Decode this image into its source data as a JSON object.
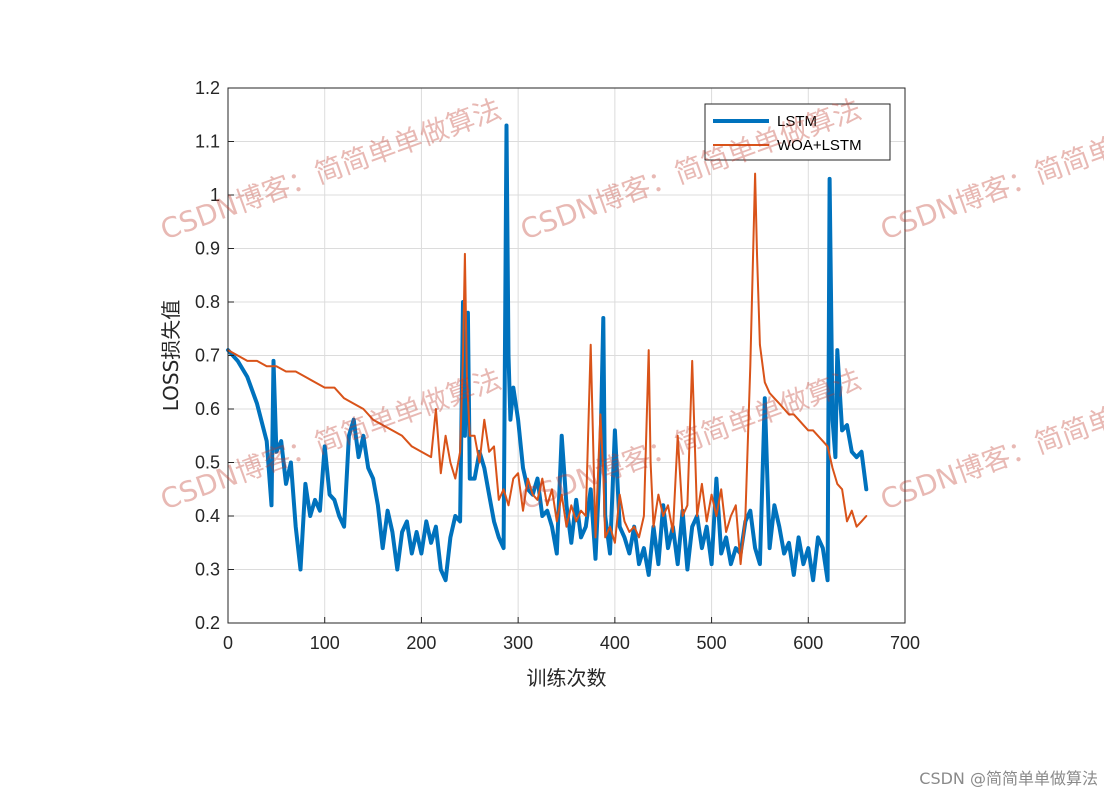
{
  "chart_data": {
    "type": "line",
    "xlabel": "训练次数",
    "ylabel": "LOSS损失值",
    "xlim": [
      0,
      700
    ],
    "ylim": [
      0.2,
      1.2
    ],
    "xticks": [
      "0",
      "100",
      "200",
      "300",
      "400",
      "500",
      "600",
      "700"
    ],
    "yticks": [
      "0.2",
      "0.3",
      "0.4",
      "0.5",
      "0.6",
      "0.7",
      "0.8",
      "0.9",
      "1",
      "1.1",
      "1.2"
    ],
    "grid": true,
    "legend_position": "top-right",
    "series": [
      {
        "name": "LSTM",
        "color": "#0072BD",
        "x": [
          0,
          10,
          20,
          30,
          40,
          45,
          47,
          50,
          55,
          60,
          65,
          70,
          75,
          80,
          85,
          90,
          95,
          100,
          105,
          110,
          115,
          120,
          125,
          130,
          135,
          140,
          145,
          150,
          155,
          160,
          165,
          170,
          175,
          180,
          185,
          190,
          195,
          200,
          205,
          210,
          215,
          220,
          225,
          230,
          235,
          240,
          243,
          245,
          248,
          250,
          255,
          260,
          265,
          270,
          275,
          280,
          285,
          288,
          290,
          292,
          295,
          300,
          305,
          310,
          315,
          320,
          325,
          330,
          335,
          340,
          345,
          350,
          355,
          360,
          365,
          370,
          375,
          380,
          385,
          388,
          390,
          395,
          400,
          405,
          410,
          415,
          420,
          425,
          430,
          435,
          440,
          445,
          450,
          455,
          460,
          465,
          470,
          475,
          480,
          485,
          490,
          495,
          500,
          505,
          510,
          515,
          520,
          525,
          530,
          535,
          540,
          545,
          550,
          555,
          560,
          565,
          570,
          575,
          580,
          585,
          590,
          595,
          600,
          605,
          610,
          615,
          620,
          622,
          625,
          628,
          630,
          635,
          640,
          645,
          650,
          655,
          660
        ],
        "values": [
          0.71,
          0.69,
          0.66,
          0.61,
          0.54,
          0.42,
          0.69,
          0.52,
          0.54,
          0.46,
          0.5,
          0.38,
          0.3,
          0.46,
          0.4,
          0.43,
          0.41,
          0.53,
          0.44,
          0.43,
          0.4,
          0.38,
          0.55,
          0.58,
          0.51,
          0.55,
          0.49,
          0.47,
          0.42,
          0.34,
          0.41,
          0.37,
          0.3,
          0.37,
          0.39,
          0.33,
          0.37,
          0.33,
          0.39,
          0.35,
          0.38,
          0.3,
          0.28,
          0.36,
          0.4,
          0.39,
          0.8,
          0.55,
          0.78,
          0.47,
          0.47,
          0.52,
          0.49,
          0.44,
          0.39,
          0.36,
          0.34,
          1.13,
          0.7,
          0.58,
          0.64,
          0.58,
          0.49,
          0.45,
          0.44,
          0.47,
          0.4,
          0.41,
          0.38,
          0.33,
          0.55,
          0.42,
          0.35,
          0.43,
          0.36,
          0.38,
          0.45,
          0.32,
          0.52,
          0.77,
          0.4,
          0.33,
          0.56,
          0.38,
          0.36,
          0.33,
          0.38,
          0.31,
          0.34,
          0.29,
          0.38,
          0.31,
          0.42,
          0.34,
          0.38,
          0.31,
          0.41,
          0.3,
          0.38,
          0.4,
          0.34,
          0.38,
          0.31,
          0.47,
          0.33,
          0.36,
          0.31,
          0.34,
          0.33,
          0.39,
          0.41,
          0.34,
          0.31,
          0.62,
          0.34,
          0.42,
          0.38,
          0.33,
          0.35,
          0.29,
          0.36,
          0.31,
          0.34,
          0.28,
          0.36,
          0.34,
          0.28,
          1.03,
          0.58,
          0.51,
          0.71,
          0.56,
          0.57,
          0.52,
          0.51,
          0.52,
          0.45
        ]
      },
      {
        "name": "WOA+LSTM",
        "color": "#D95319",
        "x": [
          0,
          10,
          20,
          30,
          40,
          50,
          60,
          70,
          80,
          90,
          100,
          110,
          120,
          130,
          140,
          150,
          160,
          170,
          180,
          190,
          200,
          210,
          215,
          220,
          225,
          230,
          235,
          240,
          243,
          245,
          247,
          250,
          255,
          260,
          265,
          270,
          275,
          280,
          285,
          290,
          295,
          300,
          305,
          310,
          315,
          320,
          325,
          330,
          335,
          340,
          345,
          350,
          355,
          360,
          365,
          370,
          375,
          380,
          385,
          388,
          390,
          395,
          400,
          405,
          410,
          415,
          420,
          425,
          430,
          435,
          437,
          440,
          445,
          450,
          455,
          460,
          465,
          470,
          475,
          480,
          485,
          490,
          495,
          500,
          505,
          510,
          515,
          520,
          525,
          530,
          535,
          540,
          545,
          547,
          550,
          555,
          560,
          565,
          570,
          575,
          580,
          585,
          590,
          595,
          600,
          605,
          610,
          615,
          620,
          625,
          630,
          635,
          640,
          645,
          650,
          655,
          660
        ],
        "values": [
          0.71,
          0.7,
          0.69,
          0.69,
          0.68,
          0.68,
          0.67,
          0.67,
          0.66,
          0.65,
          0.64,
          0.64,
          0.62,
          0.61,
          0.6,
          0.58,
          0.57,
          0.56,
          0.55,
          0.53,
          0.52,
          0.51,
          0.6,
          0.48,
          0.55,
          0.5,
          0.47,
          0.52,
          0.7,
          0.89,
          0.66,
          0.55,
          0.55,
          0.5,
          0.58,
          0.52,
          0.53,
          0.43,
          0.45,
          0.42,
          0.47,
          0.48,
          0.41,
          0.47,
          0.44,
          0.43,
          0.47,
          0.42,
          0.45,
          0.39,
          0.44,
          0.38,
          0.42,
          0.39,
          0.41,
          0.4,
          0.72,
          0.36,
          0.59,
          0.48,
          0.36,
          0.38,
          0.35,
          0.44,
          0.39,
          0.37,
          0.38,
          0.36,
          0.4,
          0.71,
          0.5,
          0.38,
          0.44,
          0.4,
          0.42,
          0.37,
          0.55,
          0.4,
          0.42,
          0.69,
          0.4,
          0.46,
          0.39,
          0.44,
          0.4,
          0.45,
          0.37,
          0.4,
          0.42,
          0.31,
          0.4,
          0.68,
          1.04,
          0.89,
          0.72,
          0.65,
          0.63,
          0.62,
          0.61,
          0.6,
          0.59,
          0.59,
          0.58,
          0.57,
          0.56,
          0.56,
          0.55,
          0.54,
          0.53,
          0.49,
          0.46,
          0.45,
          0.39,
          0.41,
          0.38,
          0.39,
          0.4
        ]
      }
    ]
  },
  "watermark": {
    "line1": "CSDN博客：简简单单做算法",
    "footer": "CSDN @简简单单做算法"
  }
}
